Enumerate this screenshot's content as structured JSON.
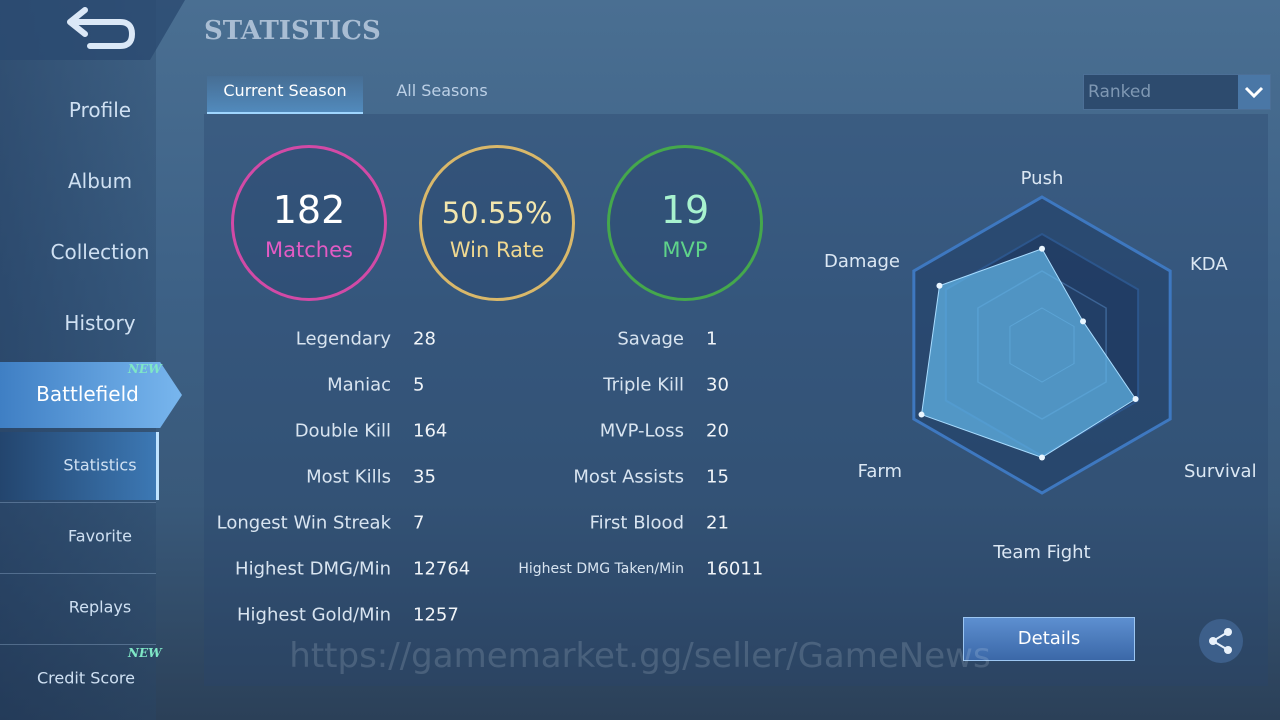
{
  "header": {
    "title": "STATISTICS"
  },
  "sidebar": {
    "items": [
      {
        "label": "Profile"
      },
      {
        "label": "Album"
      },
      {
        "label": "Collection"
      },
      {
        "label": "History"
      },
      {
        "label": "Battlefield",
        "badge": "NEW"
      },
      {
        "label": "Statistics"
      },
      {
        "label": "Favorite"
      },
      {
        "label": "Replays"
      },
      {
        "label": "Credit Score",
        "badge": "NEW"
      }
    ]
  },
  "tabs": [
    "Current Season",
    "All Seasons"
  ],
  "dropdown": "Ranked",
  "summary": [
    {
      "value": "182",
      "label": "Matches"
    },
    {
      "value": "50.55%",
      "label": "Win Rate"
    },
    {
      "value": "19",
      "label": "MVP"
    }
  ],
  "stats": {
    "left": [
      [
        "Legendary",
        "28"
      ],
      [
        "Maniac",
        "5"
      ],
      [
        "Double Kill",
        "164"
      ],
      [
        "Most Kills",
        "35"
      ],
      [
        "Longest Win Streak",
        "7"
      ],
      [
        "Highest DMG/Min",
        "12764"
      ],
      [
        "Highest Gold/Min",
        "1257"
      ]
    ],
    "right": [
      [
        "Savage",
        "1"
      ],
      [
        "Triple Kill",
        "30"
      ],
      [
        "MVP-Loss",
        "20"
      ],
      [
        "Most Assists",
        "15"
      ],
      [
        "First Blood",
        "21"
      ],
      [
        "Highest DMG Taken/Min",
        "16011"
      ]
    ]
  },
  "radar": {
    "axes": [
      "Push",
      "KDA",
      "Survival",
      "Team Fight",
      "Farm",
      "Damage"
    ],
    "values": [
      0.65,
      0.32,
      0.73,
      0.76,
      0.94,
      0.8
    ]
  },
  "button": "Details",
  "watermark": "https://gamemarket.gg/seller/GameNews"
}
